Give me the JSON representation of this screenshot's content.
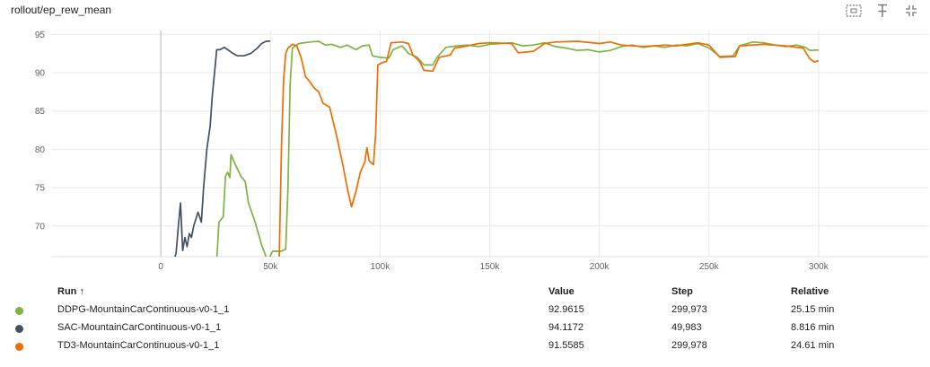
{
  "title": "rollout/ep_rew_mean",
  "toolbar": {
    "icons": [
      "fit-domain-icon",
      "pin-icon",
      "collapse-icon"
    ]
  },
  "table": {
    "headers": {
      "run": "Run ↑",
      "value": "Value",
      "step": "Step",
      "relative": "Relative"
    },
    "rows": [
      {
        "run": "DDPG-MountainCarContinuous-v0-1_1",
        "value": "92.9615",
        "step": "299,973",
        "relative": "25.15 min",
        "color": "#7cb342"
      },
      {
        "run": "SAC-MountainCarContinuous-v0-1_1",
        "value": "94.1172",
        "step": "49,983",
        "relative": "8.816 min",
        "color": "#425066"
      },
      {
        "run": "TD3-MountainCarContinuous-v0-1_1",
        "value": "91.5585",
        "step": "299,978",
        "relative": "24.61 min",
        "color": "#ef6c00"
      }
    ]
  },
  "chart_data": {
    "type": "line",
    "title": "rollout/ep_rew_mean",
    "xlim": [
      -50000,
      350000
    ],
    "ylim": [
      66,
      95.5
    ],
    "xticks": [
      0,
      50000,
      100000,
      150000,
      200000,
      250000,
      300000
    ],
    "xtick_labels": [
      "0",
      "50k",
      "100k",
      "150k",
      "200k",
      "250k",
      "300k"
    ],
    "yticks": [
      70,
      75,
      80,
      85,
      90,
      95
    ],
    "ytick_labels": [
      "70",
      "75",
      "80",
      "85",
      "90",
      "95"
    ],
    "grid": true,
    "series": [
      {
        "name": "DDPG-MountainCarContinuous-v0-1_1",
        "color": "#7cb342",
        "points": [
          [
            25500,
            65.5
          ],
          [
            26500,
            70.5
          ],
          [
            28500,
            71.2
          ],
          [
            29500,
            76.5
          ],
          [
            30500,
            77.0
          ],
          [
            31500,
            76.3
          ],
          [
            32000,
            79.3
          ],
          [
            34000,
            78.0
          ],
          [
            36500,
            76.5
          ],
          [
            38500,
            75.8
          ],
          [
            40000,
            73.0
          ],
          [
            43000,
            70.5
          ],
          [
            46000,
            67.5
          ],
          [
            48000,
            66.0
          ],
          [
            49000,
            65.6
          ],
          [
            51000,
            66.7
          ],
          [
            55000,
            66.7
          ],
          [
            57000,
            67.0
          ],
          [
            58000,
            75.0
          ],
          [
            59000,
            88.5
          ],
          [
            60000,
            93.2
          ],
          [
            63000,
            93.8
          ],
          [
            68000,
            94.0
          ],
          [
            72000,
            94.1
          ],
          [
            75000,
            93.6
          ],
          [
            78000,
            93.7
          ],
          [
            82000,
            93.3
          ],
          [
            85000,
            93.6
          ],
          [
            89000,
            93.0
          ],
          [
            92000,
            93.5
          ],
          [
            95000,
            93.6
          ],
          [
            96500,
            92.2
          ],
          [
            100000,
            92.0
          ],
          [
            104000,
            91.9
          ],
          [
            106000,
            93.0
          ],
          [
            110000,
            93.5
          ],
          [
            113000,
            92.5
          ],
          [
            117000,
            92.0
          ],
          [
            120000,
            91.0
          ],
          [
            124000,
            91.0
          ],
          [
            126000,
            92.0
          ],
          [
            130000,
            93.3
          ],
          [
            135000,
            93.5
          ],
          [
            140000,
            93.6
          ],
          [
            145000,
            93.4
          ],
          [
            150000,
            93.7
          ],
          [
            155000,
            93.8
          ],
          [
            160000,
            93.9
          ],
          [
            165000,
            93.5
          ],
          [
            170000,
            93.6
          ],
          [
            175000,
            93.9
          ],
          [
            180000,
            93.4
          ],
          [
            185000,
            93.2
          ],
          [
            190000,
            92.9
          ],
          [
            195000,
            93.0
          ],
          [
            200000,
            92.7
          ],
          [
            205000,
            92.9
          ],
          [
            210000,
            93.4
          ],
          [
            215000,
            93.6
          ],
          [
            220000,
            93.3
          ],
          [
            225000,
            93.5
          ],
          [
            230000,
            93.3
          ],
          [
            235000,
            93.6
          ],
          [
            240000,
            93.5
          ],
          [
            245000,
            93.8
          ],
          [
            250000,
            93.2
          ],
          [
            255000,
            92.1
          ],
          [
            261000,
            92.2
          ],
          [
            264000,
            93.5
          ],
          [
            270000,
            94.0
          ],
          [
            275000,
            93.9
          ],
          [
            280000,
            93.6
          ],
          [
            285000,
            93.4
          ],
          [
            290000,
            93.6
          ],
          [
            294000,
            93.3
          ],
          [
            296000,
            92.9
          ],
          [
            300000,
            92.96
          ]
        ]
      },
      {
        "name": "SAC-MountainCarContinuous-v0-1_1",
        "color": "#425066",
        "points": [
          [
            6000,
            65.5
          ],
          [
            7000,
            66.5
          ],
          [
            8000,
            70.0
          ],
          [
            9000,
            73.0
          ],
          [
            10000,
            66.8
          ],
          [
            11000,
            68.5
          ],
          [
            12000,
            67.3
          ],
          [
            13000,
            69.0
          ],
          [
            14000,
            68.5
          ],
          [
            15000,
            70.0
          ],
          [
            17000,
            71.8
          ],
          [
            18500,
            70.5
          ],
          [
            19500,
            75.0
          ],
          [
            21000,
            80.0
          ],
          [
            22500,
            83.0
          ],
          [
            23500,
            87.0
          ],
          [
            24500,
            90.0
          ],
          [
            25500,
            93.0
          ],
          [
            27000,
            93.0
          ],
          [
            29000,
            93.3
          ],
          [
            31000,
            92.9
          ],
          [
            33000,
            92.5
          ],
          [
            35000,
            92.2
          ],
          [
            38000,
            92.2
          ],
          [
            41000,
            92.5
          ],
          [
            44000,
            93.2
          ],
          [
            46000,
            93.8
          ],
          [
            48000,
            94.1
          ],
          [
            49983,
            94.12
          ]
        ]
      },
      {
        "name": "TD3-MountainCarContinuous-v0-1_1",
        "color": "#ef6c00",
        "points": [
          [
            54000,
            65.5
          ],
          [
            55000,
            80.0
          ],
          [
            56000,
            89.0
          ],
          [
            57000,
            92.5
          ],
          [
            58000,
            93.2
          ],
          [
            60000,
            93.7
          ],
          [
            62000,
            93.5
          ],
          [
            64000,
            92.0
          ],
          [
            66000,
            89.5
          ],
          [
            68000,
            88.8
          ],
          [
            70000,
            88.0
          ],
          [
            72000,
            87.5
          ],
          [
            74000,
            86.0
          ],
          [
            77000,
            85.5
          ],
          [
            80000,
            82.0
          ],
          [
            83000,
            78.0
          ],
          [
            85000,
            75.0
          ],
          [
            87000,
            72.5
          ],
          [
            89000,
            74.5
          ],
          [
            91000,
            77.0
          ],
          [
            93000,
            78.3
          ],
          [
            94000,
            80.2
          ],
          [
            95000,
            78.5
          ],
          [
            97000,
            78.0
          ],
          [
            98000,
            82.0
          ],
          [
            99000,
            91.0
          ],
          [
            101000,
            91.3
          ],
          [
            103000,
            91.5
          ],
          [
            105000,
            93.9
          ],
          [
            110000,
            94.0
          ],
          [
            113000,
            93.8
          ],
          [
            115000,
            92.3
          ],
          [
            118000,
            91.5
          ],
          [
            120000,
            90.3
          ],
          [
            124000,
            90.2
          ],
          [
            127000,
            92.0
          ],
          [
            132000,
            92.3
          ],
          [
            134000,
            93.2
          ],
          [
            140000,
            93.5
          ],
          [
            145000,
            93.8
          ],
          [
            150000,
            93.9
          ],
          [
            160000,
            93.8
          ],
          [
            163000,
            92.6
          ],
          [
            170000,
            92.8
          ],
          [
            175000,
            93.8
          ],
          [
            180000,
            94.0
          ],
          [
            190000,
            94.1
          ],
          [
            200000,
            93.8
          ],
          [
            205000,
            94.0
          ],
          [
            210000,
            93.6
          ],
          [
            220000,
            93.4
          ],
          [
            230000,
            93.6
          ],
          [
            235000,
            93.5
          ],
          [
            245000,
            93.9
          ],
          [
            250000,
            93.6
          ],
          [
            255000,
            92.0
          ],
          [
            262000,
            92.1
          ],
          [
            264000,
            93.5
          ],
          [
            275000,
            93.7
          ],
          [
            285000,
            93.5
          ],
          [
            293000,
            93.2
          ],
          [
            296000,
            91.8
          ],
          [
            298000,
            91.4
          ],
          [
            300000,
            91.56
          ]
        ]
      }
    ]
  }
}
